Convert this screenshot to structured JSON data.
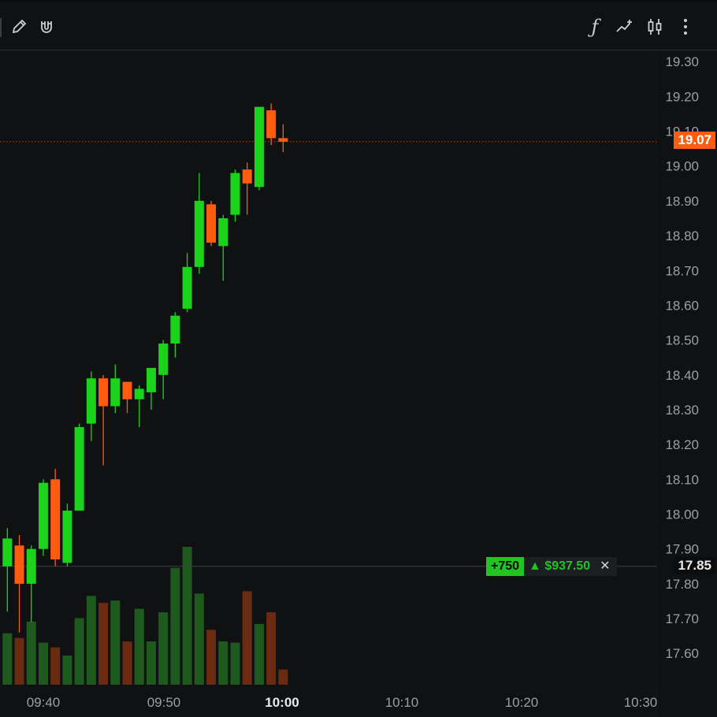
{
  "toolbar": {
    "left_icons": [
      "pencil-icon",
      "magnet-icon"
    ],
    "right_icons": [
      "function-icon",
      "indicator-icon",
      "candlestick-icon",
      "more-vertical-icon"
    ],
    "function_glyph": "ƒ"
  },
  "colors": {
    "background": "#0f1113",
    "up": "#1bd31b",
    "down": "#ff5c0f",
    "volume_up": "#1e5a1e",
    "volume_down": "#6b2a12",
    "axis_text": "#9aa0a6",
    "last_price_bg": "#ff5c0f"
  },
  "last_price": "19.07",
  "entry_price": "17.85",
  "position": {
    "quantity": "+750",
    "pnl": "▲ $937.50",
    "close_glyph": "✕"
  },
  "chart_data": {
    "type": "candlestick",
    "y_axis": {
      "ticks": [
        "19.30",
        "19.20",
        "19.10",
        "19.00",
        "18.90",
        "18.80",
        "18.70",
        "18.60",
        "18.50",
        "18.40",
        "18.30",
        "18.20",
        "18.10",
        "18.00",
        "17.90",
        "17.80",
        "17.70",
        "17.60"
      ],
      "range": [
        17.52,
        19.33
      ]
    },
    "x_axis": {
      "ticks": [
        "09:40",
        "09:50",
        "10:00",
        "10:10",
        "10:20",
        "10:30"
      ]
    },
    "candles": [
      {
        "o": 17.85,
        "h": 17.96,
        "l": 17.72,
        "c": 17.93,
        "v": 0.44
      },
      {
        "o": 17.91,
        "h": 17.94,
        "l": 17.66,
        "c": 17.8,
        "v": 0.4
      },
      {
        "o": 17.8,
        "h": 17.91,
        "l": 17.69,
        "c": 17.9,
        "v": 0.54
      },
      {
        "o": 17.9,
        "h": 18.1,
        "l": 17.88,
        "c": 18.09,
        "v": 0.36
      },
      {
        "o": 18.1,
        "h": 18.13,
        "l": 17.85,
        "c": 17.87,
        "v": 0.32
      },
      {
        "o": 17.86,
        "h": 18.03,
        "l": 17.85,
        "c": 18.01,
        "v": 0.25
      },
      {
        "o": 18.01,
        "h": 18.26,
        "l": 18.01,
        "c": 18.25,
        "v": 0.57
      },
      {
        "o": 18.26,
        "h": 18.41,
        "l": 18.21,
        "c": 18.39,
        "v": 0.76
      },
      {
        "o": 18.39,
        "h": 18.4,
        "l": 18.14,
        "c": 18.31,
        "v": 0.7
      },
      {
        "o": 18.31,
        "h": 18.43,
        "l": 18.29,
        "c": 18.39,
        "v": 0.72
      },
      {
        "o": 18.38,
        "h": 18.38,
        "l": 18.29,
        "c": 18.33,
        "v": 0.37
      },
      {
        "o": 18.33,
        "h": 18.37,
        "l": 18.25,
        "c": 18.36,
        "v": 0.65
      },
      {
        "o": 18.35,
        "h": 18.42,
        "l": 18.3,
        "c": 18.42,
        "v": 0.37
      },
      {
        "o": 18.4,
        "h": 18.5,
        "l": 18.33,
        "c": 18.49,
        "v": 0.62
      },
      {
        "o": 18.49,
        "h": 18.58,
        "l": 18.45,
        "c": 18.57,
        "v": 1.0
      },
      {
        "o": 18.59,
        "h": 18.75,
        "l": 18.58,
        "c": 18.71,
        "v": 1.18
      },
      {
        "o": 18.71,
        "h": 18.98,
        "l": 18.69,
        "c": 18.9,
        "v": 0.78
      },
      {
        "o": 18.89,
        "h": 18.9,
        "l": 18.77,
        "c": 18.78,
        "v": 0.47
      },
      {
        "o": 18.77,
        "h": 18.86,
        "l": 18.67,
        "c": 18.85,
        "v": 0.37
      },
      {
        "o": 18.86,
        "h": 18.99,
        "l": 18.84,
        "c": 18.98,
        "v": 0.36
      },
      {
        "o": 18.99,
        "h": 19.01,
        "l": 18.86,
        "c": 18.95,
        "v": 0.8
      },
      {
        "o": 18.94,
        "h": 19.17,
        "l": 18.93,
        "c": 19.17,
        "v": 0.52
      },
      {
        "o": 19.16,
        "h": 19.18,
        "l": 19.06,
        "c": 19.08,
        "v": 0.62
      },
      {
        "o": 19.08,
        "h": 19.12,
        "l": 19.04,
        "c": 19.07,
        "v": 0.13
      }
    ]
  }
}
